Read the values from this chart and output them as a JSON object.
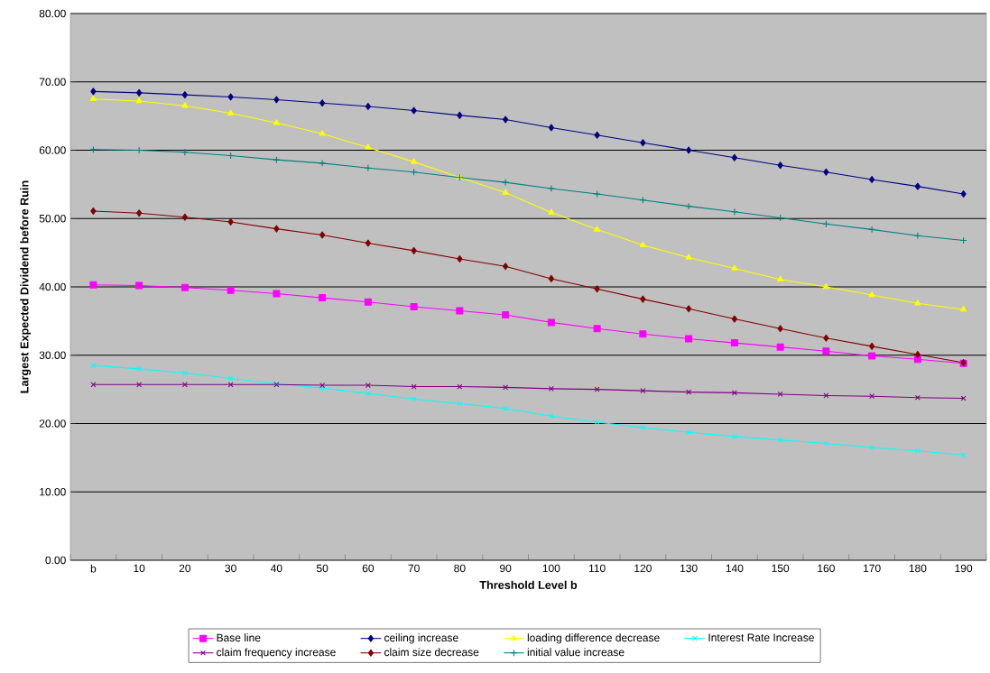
{
  "chart_data": {
    "type": "line",
    "xlabel": "Threshold Level b",
    "ylabel": "Largest Expected Dividend before Ruin",
    "categories": [
      "b",
      "10",
      "20",
      "30",
      "40",
      "50",
      "60",
      "70",
      "80",
      "90",
      "100",
      "110",
      "120",
      "130",
      "140",
      "150",
      "160",
      "170",
      "180",
      "190"
    ],
    "ylim": [
      0,
      80
    ],
    "yticks": [
      {
        "value": 0,
        "label": "0.00"
      },
      {
        "value": 10,
        "label": "10.00"
      },
      {
        "value": 20,
        "label": "20.00"
      },
      {
        "value": 30,
        "label": "30.00"
      },
      {
        "value": 40,
        "label": "40.00"
      },
      {
        "value": 50,
        "label": "50.00"
      },
      {
        "value": 60,
        "label": "60.00"
      },
      {
        "value": 70,
        "label": "70.00"
      },
      {
        "value": 80,
        "label": "80.00"
      }
    ],
    "grid": "y",
    "legend": "bottom",
    "line_style": "solid",
    "series": [
      {
        "name": "Base line",
        "color": "#ff00ff",
        "marker": "square",
        "values": [
          40.3,
          40.2,
          39.9,
          39.5,
          39.0,
          38.4,
          37.8,
          37.1,
          36.5,
          35.9,
          34.8,
          33.9,
          33.1,
          32.4,
          31.8,
          31.2,
          30.6,
          29.9,
          29.4,
          28.8
        ]
      },
      {
        "name": "ceiling increase",
        "color": "#000080",
        "marker": "diamond",
        "values": [
          68.6,
          68.4,
          68.1,
          67.8,
          67.4,
          66.9,
          66.4,
          65.8,
          65.1,
          64.5,
          63.3,
          62.2,
          61.1,
          60.0,
          58.9,
          57.8,
          56.8,
          55.7,
          54.7,
          53.6
        ]
      },
      {
        "name": "loading difference decrease",
        "color": "#ffff00",
        "marker": "triangle",
        "values": [
          67.5,
          67.2,
          66.5,
          65.4,
          64.0,
          62.4,
          60.4,
          58.3,
          56.0,
          53.8,
          50.9,
          48.4,
          46.1,
          44.3,
          42.7,
          41.1,
          40.0,
          38.8,
          37.6,
          36.7
        ]
      },
      {
        "name": "Interest Rate Increase",
        "color": "#00ffff",
        "marker": "cross",
        "values": [
          28.5,
          28.0,
          27.4,
          26.6,
          25.8,
          25.2,
          24.4,
          23.6,
          22.9,
          22.2,
          21.1,
          20.2,
          19.4,
          18.7,
          18.1,
          17.6,
          17.1,
          16.5,
          16.0,
          15.4
        ]
      },
      {
        "name": "claim frequency increase",
        "color": "#800080",
        "marker": "cross",
        "values": [
          25.7,
          25.7,
          25.7,
          25.7,
          25.7,
          25.6,
          25.6,
          25.4,
          25.4,
          25.3,
          25.1,
          25.0,
          24.8,
          24.6,
          24.5,
          24.3,
          24.1,
          24.0,
          23.8,
          23.7
        ]
      },
      {
        "name": "claim size decrease",
        "color": "#800000",
        "marker": "diamond",
        "values": [
          51.1,
          50.8,
          50.2,
          49.5,
          48.5,
          47.6,
          46.4,
          45.3,
          44.1,
          43.0,
          41.2,
          39.7,
          38.2,
          36.8,
          35.3,
          33.9,
          32.5,
          31.3,
          30.1,
          28.9
        ]
      },
      {
        "name": "initial value increase",
        "color": "#008080",
        "marker": "plus",
        "values": [
          60.1,
          60.0,
          59.7,
          59.2,
          58.6,
          58.1,
          57.4,
          56.8,
          56.0,
          55.3,
          54.4,
          53.6,
          52.7,
          51.8,
          51.0,
          50.1,
          49.2,
          48.4,
          47.5,
          46.8
        ]
      }
    ]
  }
}
